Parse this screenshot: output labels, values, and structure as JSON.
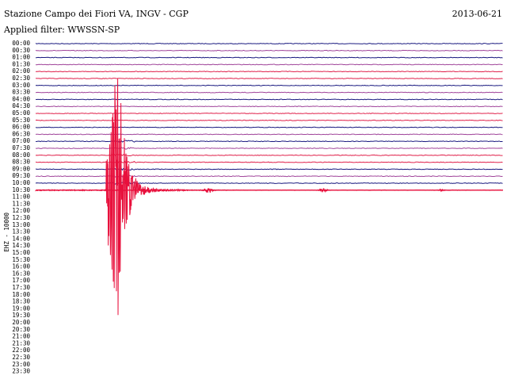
{
  "header": {
    "title": "Stazione Campo dei Fiori VA, INGV - CGP",
    "date": "2013-06-21",
    "filter": "Applied filter: WWSSN-SP",
    "channel": "EHZ - 10000"
  },
  "rows": [
    "00:00",
    "00:30",
    "01:00",
    "01:30",
    "02:00",
    "02:30",
    "03:00",
    "03:30",
    "04:00",
    "04:30",
    "05:00",
    "05:30",
    "06:00",
    "06:30",
    "07:00",
    "07:30",
    "08:00",
    "08:30",
    "09:00",
    "09:30",
    "10:00",
    "10:30",
    "11:00",
    "11:30",
    "12:00",
    "12:30",
    "13:00",
    "13:30",
    "14:00",
    "14:30",
    "15:00",
    "15:30",
    "16:00",
    "16:30",
    "17:00",
    "17:30",
    "18:00",
    "18:30",
    "19:00",
    "19:30",
    "20:00",
    "20:30",
    "21:00",
    "21:30",
    "22:00",
    "22:30",
    "23:00",
    "23:30"
  ]
}
